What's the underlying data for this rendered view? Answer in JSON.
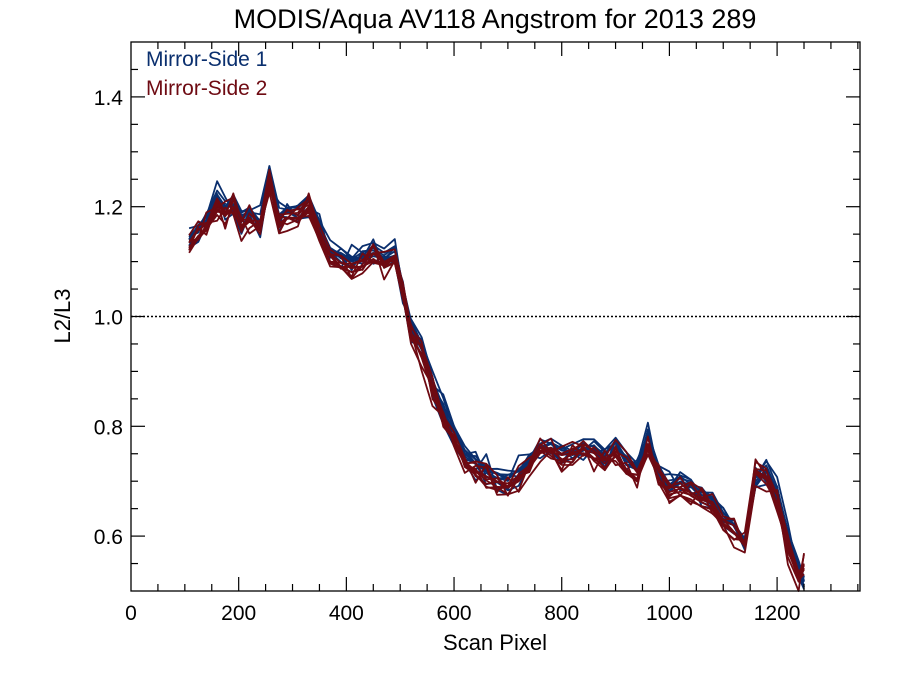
{
  "chart_data": {
    "type": "line",
    "title": "MODIS/Aqua AV118 Angstrom for 2013 289",
    "xlabel": "Scan Pixel",
    "ylabel": "L2/L3",
    "xlim": [
      0,
      1354
    ],
    "ylim": [
      0.5,
      1.5
    ],
    "xticks": [
      0,
      200,
      400,
      600,
      800,
      1000,
      1200
    ],
    "xtick_labels": [
      "0",
      "200",
      "400",
      "600",
      "800",
      "1000",
      "1200"
    ],
    "yticks": [
      0.6,
      0.8,
      1.0,
      1.2,
      1.4
    ],
    "ytick_labels": [
      "0.6",
      "0.8",
      "1.0",
      "1.2",
      "1.4"
    ],
    "reference_line": 1.0,
    "grid": false,
    "legend_position": "top-left",
    "colors": {
      "mirror1": "#0a2f6e",
      "mirror2": "#6e0a12",
      "axis": "#000000"
    },
    "series": [
      {
        "name": "Mirror-Side 1",
        "color": "#0a2f6e",
        "x": [
          108,
          125,
          140,
          160,
          175,
          190,
          205,
          220,
          240,
          257,
          275,
          290,
          310,
          330,
          350,
          370,
          390,
          410,
          430,
          450,
          470,
          490,
          505,
          520,
          540,
          560,
          580,
          600,
          620,
          640,
          660,
          680,
          700,
          720,
          740,
          760,
          780,
          800,
          820,
          840,
          860,
          880,
          900,
          920,
          940,
          960,
          980,
          1000,
          1020,
          1040,
          1060,
          1080,
          1100,
          1120,
          1140,
          1160,
          1180,
          1200,
          1220,
          1240,
          1250
        ],
        "y": [
          1.14,
          1.16,
          1.18,
          1.22,
          1.2,
          1.21,
          1.18,
          1.19,
          1.17,
          1.26,
          1.18,
          1.19,
          1.19,
          1.21,
          1.16,
          1.12,
          1.11,
          1.1,
          1.11,
          1.12,
          1.11,
          1.12,
          1.05,
          0.98,
          0.94,
          0.88,
          0.83,
          0.79,
          0.75,
          0.73,
          0.72,
          0.71,
          0.7,
          0.72,
          0.74,
          0.76,
          0.77,
          0.76,
          0.75,
          0.76,
          0.76,
          0.75,
          0.77,
          0.74,
          0.72,
          0.78,
          0.72,
          0.69,
          0.7,
          0.69,
          0.68,
          0.67,
          0.64,
          0.62,
          0.58,
          0.7,
          0.72,
          0.68,
          0.6,
          0.54,
          0.52
        ]
      },
      {
        "name": "Mirror-Side 2",
        "color": "#6e0a12",
        "x": [
          108,
          125,
          140,
          160,
          175,
          190,
          205,
          220,
          240,
          257,
          275,
          290,
          310,
          330,
          350,
          370,
          390,
          410,
          430,
          450,
          470,
          490,
          505,
          520,
          540,
          560,
          580,
          600,
          620,
          640,
          660,
          680,
          700,
          720,
          740,
          760,
          780,
          800,
          820,
          840,
          860,
          880,
          900,
          920,
          940,
          960,
          980,
          1000,
          1020,
          1040,
          1060,
          1080,
          1100,
          1120,
          1140,
          1160,
          1180,
          1200,
          1220,
          1240,
          1250
        ],
        "y": [
          1.13,
          1.15,
          1.17,
          1.2,
          1.19,
          1.2,
          1.17,
          1.18,
          1.16,
          1.25,
          1.17,
          1.18,
          1.18,
          1.2,
          1.15,
          1.11,
          1.1,
          1.09,
          1.1,
          1.11,
          1.1,
          1.11,
          1.04,
          0.97,
          0.93,
          0.87,
          0.82,
          0.78,
          0.74,
          0.72,
          0.71,
          0.7,
          0.69,
          0.71,
          0.73,
          0.76,
          0.76,
          0.75,
          0.75,
          0.76,
          0.75,
          0.74,
          0.76,
          0.73,
          0.71,
          0.76,
          0.71,
          0.68,
          0.69,
          0.68,
          0.67,
          0.66,
          0.63,
          0.61,
          0.59,
          0.72,
          0.71,
          0.66,
          0.58,
          0.53,
          0.55
        ]
      }
    ]
  }
}
